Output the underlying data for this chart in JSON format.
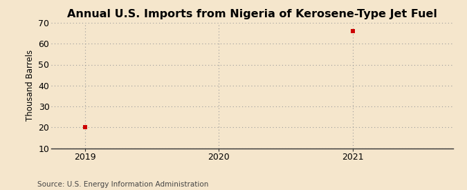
{
  "title": "Annual U.S. Imports from Nigeria of Kerosene-Type Jet Fuel",
  "ylabel": "Thousand Barrels",
  "source": "Source: U.S. Energy Information Administration",
  "background_color": "#f5e6cc",
  "plot_bg_color": "#f5e6cc",
  "data_x": [
    2019,
    2021
  ],
  "data_y": [
    20,
    66
  ],
  "marker_color": "#cc0000",
  "marker_size": 4,
  "xlim": [
    2018.75,
    2021.75
  ],
  "ylim": [
    10,
    70
  ],
  "yticks": [
    10,
    20,
    30,
    40,
    50,
    60,
    70
  ],
  "xticks": [
    2019,
    2020,
    2021
  ],
  "grid_color": "#999999",
  "grid_style": ":",
  "title_fontsize": 11.5,
  "label_fontsize": 8.5,
  "tick_fontsize": 9,
  "source_fontsize": 7.5,
  "spine_color": "#333333"
}
